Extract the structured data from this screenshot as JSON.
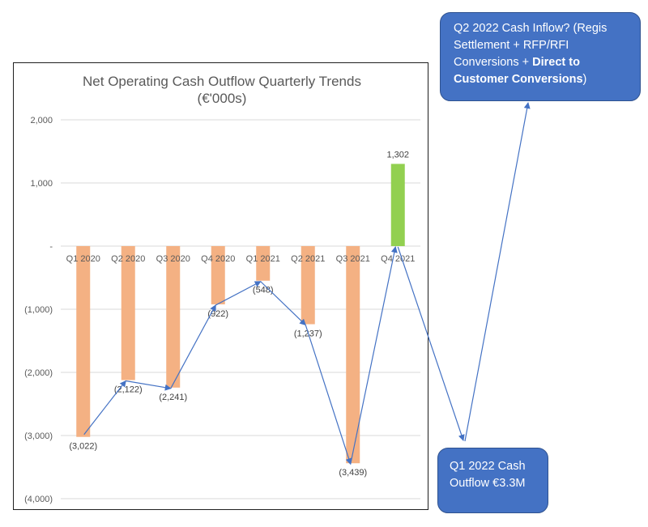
{
  "chart_data": {
    "type": "bar",
    "title": "Net Operating Cash Outflow Quarterly Trends",
    "subtitle": "(€'000s)",
    "categories": [
      "Q1 2020",
      "Q2 2020",
      "Q3 2020",
      "Q4 2020",
      "Q1 2021",
      "Q2 2021",
      "Q3 2021",
      "Q4 2021"
    ],
    "values": [
      -3022,
      -2122,
      -2241,
      -922,
      -548,
      -1237,
      -3439,
      1302
    ],
    "data_labels": [
      "(3,022)",
      "(2,122)",
      "(2,241)",
      "(922)",
      "(548)",
      "(1,237)",
      "(3,439)",
      "1,302"
    ],
    "ylim": [
      -4000,
      2000
    ],
    "yticks": [
      2000,
      1000,
      0,
      -1000,
      -2000,
      -3000,
      -4000
    ],
    "ytick_labels": [
      "2,000",
      "1,000",
      "-",
      "(1,000)",
      "(2,000)",
      "(3,000)",
      "(4,000)"
    ],
    "grid": true,
    "colors": {
      "negative": "#f4b183",
      "positive": "#92d050",
      "arrow": "#4472c4"
    }
  },
  "callouts": {
    "top": {
      "text_plain": "Q2 2022 Cash Inflow? (Regis Settlement + RFP/RFI Conversions + ",
      "text_bold": "Direct to Customer Conversions",
      "text_end": ")"
    },
    "bottom": {
      "text": "Q1 2022 Cash Outflow €3.3M"
    }
  }
}
